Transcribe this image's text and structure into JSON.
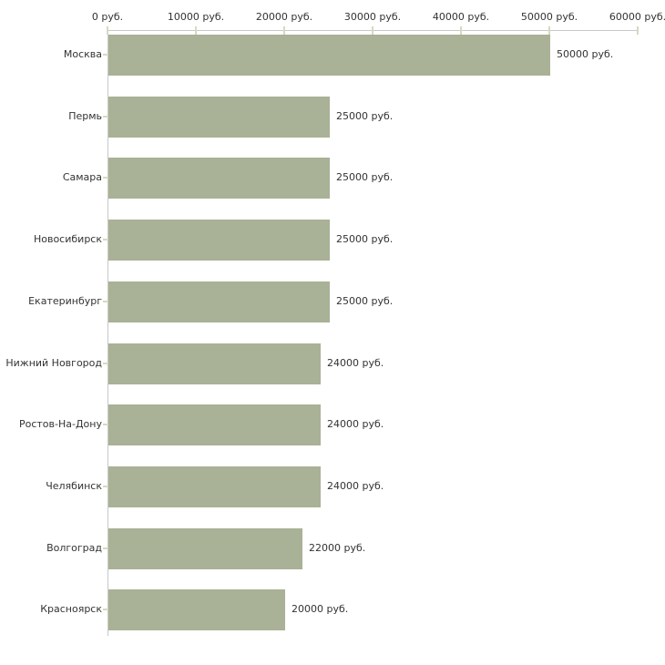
{
  "chart_data": {
    "type": "bar",
    "orientation": "horizontal",
    "title": "",
    "unit_suffix": " руб.",
    "categories": [
      "Москва",
      "Пермь",
      "Самара",
      "Новосибирск",
      "Екатеринбург",
      "Нижний Новгород",
      "Ростов-На-Дону",
      "Челябинск",
      "Волгоград",
      "Красноярск"
    ],
    "values": [
      50000,
      25000,
      25000,
      25000,
      25000,
      24000,
      24000,
      24000,
      22000,
      20000
    ],
    "value_labels": [
      "50000 руб.",
      "25000 руб.",
      "25000 руб.",
      "25000 руб.",
      "25000 руб.",
      "24000 руб.",
      "24000 руб.",
      "24000 руб.",
      "22000 руб.",
      "20000 руб."
    ],
    "x_tick_labels": [
      "0 руб.",
      "10000 руб.",
      "20000 руб.",
      "30000 руб.",
      "40000 руб.",
      "50000 руб.",
      "60000 руб."
    ],
    "x_tick_values": [
      0,
      10000,
      20000,
      30000,
      40000,
      50000,
      60000
    ],
    "xlim": [
      0,
      60000
    ],
    "grid": false,
    "legend": "none",
    "colors": {
      "bar": "#a9b196",
      "axis": "#c8c8c8",
      "tick": "#d6d9c0",
      "text": "#333333",
      "background": "#ffffff"
    }
  }
}
